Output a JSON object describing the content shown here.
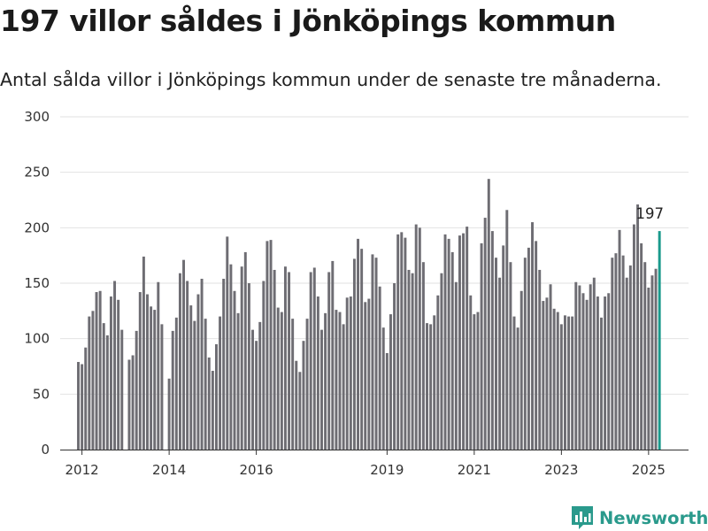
{
  "title": "197 villor såldes i Jönköpings kommun",
  "subtitle": "Antal sålda villor i Jönköpings kommun under de senaste tre månaderna.",
  "brand": {
    "name": "Newsworthy",
    "icon": "newsworthy-logo-icon",
    "color": "#2a9a8c"
  },
  "chart_data": {
    "type": "bar",
    "title": "197 villor såldes i Jönköpings kommun",
    "subtitle": "Antal sålda villor i Jönköpings kommun under de senaste tre månaderna.",
    "xlabel": "",
    "ylabel": "",
    "ylim": [
      0,
      300
    ],
    "yticks": [
      0,
      50,
      100,
      150,
      200,
      250,
      300
    ],
    "xlim": [
      "2011-07",
      "2025-12"
    ],
    "xticks": [
      {
        "label": "2012",
        "month": "2012-01"
      },
      {
        "label": "2014",
        "month": "2014-01"
      },
      {
        "label": "2016",
        "month": "2016-01"
      },
      {
        "label": "2019",
        "month": "2019-01"
      },
      {
        "label": "2021",
        "month": "2021-01"
      },
      {
        "label": "2023",
        "month": "2023-01"
      },
      {
        "label": "2025",
        "month": "2025-01"
      }
    ],
    "grid": true,
    "colors": {
      "bar": "#6e6d73",
      "highlight": "#1a9a8c",
      "grid": "#e2e2e2"
    },
    "start_month": "2011-12",
    "values": [
      79,
      77,
      92,
      120,
      125,
      142,
      143,
      114,
      103,
      138,
      152,
      135,
      108,
      null,
      81,
      85,
      107,
      142,
      174,
      140,
      129,
      126,
      151,
      113,
      null,
      64,
      107,
      119,
      159,
      171,
      152,
      130,
      116,
      140,
      154,
      118,
      83,
      71,
      95,
      120,
      154,
      192,
      167,
      143,
      123,
      165,
      178,
      150,
      108,
      98,
      115,
      152,
      188,
      189,
      162,
      128,
      124,
      165,
      160,
      118,
      80,
      70,
      98,
      118,
      160,
      164,
      138,
      108,
      123,
      160,
      170,
      126,
      124,
      113,
      137,
      138,
      172,
      190,
      181,
      133,
      136,
      176,
      173,
      147,
      110,
      87,
      122,
      150,
      194,
      196,
      191,
      162,
      159,
      203,
      200,
      169,
      114,
      113,
      121,
      139,
      159,
      194,
      190,
      178,
      151,
      193,
      195,
      201,
      139,
      122,
      124,
      186,
      209,
      244,
      197,
      173,
      155,
      184,
      216,
      169,
      120,
      110,
      143,
      173,
      182,
      205,
      188,
      162,
      134,
      137,
      149,
      127,
      124,
      113,
      121,
      120,
      120,
      151,
      148,
      141,
      135,
      149,
      155,
      138,
      119,
      138,
      141,
      173,
      177,
      198,
      175,
      155,
      166,
      203,
      221,
      186,
      169,
      146,
      157,
      163,
      197
    ],
    "annotations": [
      {
        "month": "2025-05",
        "value": 197,
        "label": "197"
      }
    ]
  }
}
